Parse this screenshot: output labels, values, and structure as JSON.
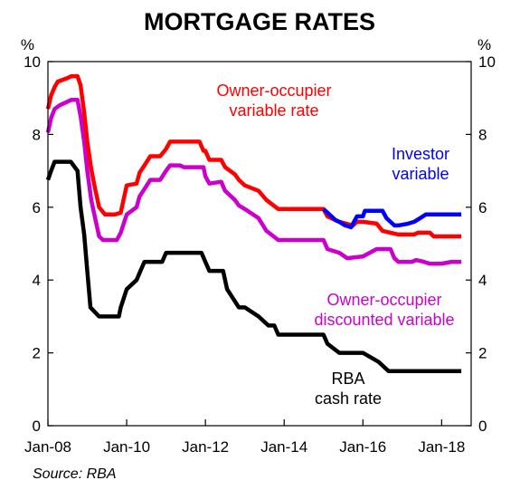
{
  "chart_data": {
    "type": "line",
    "title": "MORTGAGE RATES",
    "y_unit_left": "%",
    "y_unit_right": "%",
    "ylim": [
      0,
      10
    ],
    "yticks": [
      0,
      2,
      4,
      6,
      8,
      10
    ],
    "xlim": [
      2008.0,
      2018.75
    ],
    "xticks": [
      {
        "label": "Jan-08",
        "value": 2008.0
      },
      {
        "label": "Jan-10",
        "value": 2010.0
      },
      {
        "label": "Jan-12",
        "value": 2012.0
      },
      {
        "label": "Jan-14",
        "value": 2014.0
      },
      {
        "label": "Jan-16",
        "value": 2016.0
      },
      {
        "label": "Jan-18",
        "value": 2018.0
      }
    ],
    "grid": false,
    "source": "Source: RBA",
    "series": [
      {
        "name": "Owner-occupier variable rate",
        "label_lines": [
          "Owner-occupier",
          "variable rate"
        ],
        "color": "#ff0000",
        "points": [
          [
            2008.0,
            8.7
          ],
          [
            2008.08,
            9.07
          ],
          [
            2008.17,
            9.3
          ],
          [
            2008.25,
            9.45
          ],
          [
            2008.5,
            9.55
          ],
          [
            2008.6,
            9.6
          ],
          [
            2008.75,
            9.6
          ],
          [
            2008.83,
            9.35
          ],
          [
            2008.92,
            8.6
          ],
          [
            2009.0,
            7.8
          ],
          [
            2009.1,
            7.05
          ],
          [
            2009.2,
            6.5
          ],
          [
            2009.3,
            6.0
          ],
          [
            2009.45,
            5.8
          ],
          [
            2009.7,
            5.8
          ],
          [
            2009.85,
            5.85
          ],
          [
            2010.0,
            6.6
          ],
          [
            2010.25,
            6.65
          ],
          [
            2010.33,
            6.95
          ],
          [
            2010.45,
            7.15
          ],
          [
            2010.6,
            7.4
          ],
          [
            2010.85,
            7.4
          ],
          [
            2011.0,
            7.6
          ],
          [
            2011.1,
            7.8
          ],
          [
            2011.85,
            7.8
          ],
          [
            2011.95,
            7.55
          ],
          [
            2012.0,
            7.55
          ],
          [
            2012.1,
            7.3
          ],
          [
            2012.4,
            7.3
          ],
          [
            2012.5,
            7.1
          ],
          [
            2012.75,
            6.9
          ],
          [
            2012.85,
            6.75
          ],
          [
            2013.0,
            6.6
          ],
          [
            2013.35,
            6.45
          ],
          [
            2013.55,
            6.2
          ],
          [
            2013.85,
            5.95
          ],
          [
            2014.0,
            5.95
          ],
          [
            2015.0,
            5.95
          ],
          [
            2015.1,
            5.75
          ],
          [
            2015.4,
            5.6
          ],
          [
            2015.75,
            5.5
          ],
          [
            2015.85,
            5.6
          ],
          [
            2016.0,
            5.6
          ],
          [
            2016.35,
            5.55
          ],
          [
            2016.5,
            5.35
          ],
          [
            2016.9,
            5.25
          ],
          [
            2017.0,
            5.25
          ],
          [
            2017.3,
            5.25
          ],
          [
            2017.4,
            5.3
          ],
          [
            2017.7,
            5.3
          ],
          [
            2017.8,
            5.2
          ],
          [
            2018.5,
            5.2
          ]
        ]
      },
      {
        "name": "Owner-occupier discounted variable",
        "label_lines": [
          "Owner-occupier",
          "discounted variable"
        ],
        "color": "#cc00cc",
        "points": [
          [
            2008.0,
            8.05
          ],
          [
            2008.08,
            8.45
          ],
          [
            2008.17,
            8.7
          ],
          [
            2008.3,
            8.8
          ],
          [
            2008.5,
            8.9
          ],
          [
            2008.6,
            8.95
          ],
          [
            2008.75,
            8.95
          ],
          [
            2008.83,
            8.5
          ],
          [
            2008.92,
            7.8
          ],
          [
            2009.0,
            7.0
          ],
          [
            2009.1,
            6.2
          ],
          [
            2009.2,
            5.7
          ],
          [
            2009.3,
            5.2
          ],
          [
            2009.4,
            5.1
          ],
          [
            2009.75,
            5.1
          ],
          [
            2009.85,
            5.3
          ],
          [
            2010.0,
            5.8
          ],
          [
            2010.25,
            6.0
          ],
          [
            2010.33,
            6.3
          ],
          [
            2010.45,
            6.5
          ],
          [
            2010.6,
            6.75
          ],
          [
            2010.85,
            6.75
          ],
          [
            2011.0,
            7.0
          ],
          [
            2011.1,
            7.15
          ],
          [
            2011.35,
            7.15
          ],
          [
            2011.45,
            7.1
          ],
          [
            2011.95,
            7.1
          ],
          [
            2012.0,
            6.85
          ],
          [
            2012.1,
            6.65
          ],
          [
            2012.4,
            6.7
          ],
          [
            2012.5,
            6.45
          ],
          [
            2012.75,
            6.2
          ],
          [
            2012.85,
            6.05
          ],
          [
            2013.0,
            5.95
          ],
          [
            2013.35,
            5.7
          ],
          [
            2013.55,
            5.35
          ],
          [
            2013.85,
            5.1
          ],
          [
            2014.0,
            5.1
          ],
          [
            2015.0,
            5.1
          ],
          [
            2015.1,
            4.85
          ],
          [
            2015.4,
            4.75
          ],
          [
            2015.6,
            4.6
          ],
          [
            2016.0,
            4.65
          ],
          [
            2016.35,
            4.85
          ],
          [
            2016.7,
            4.85
          ],
          [
            2016.8,
            4.6
          ],
          [
            2016.9,
            4.5
          ],
          [
            2017.25,
            4.5
          ],
          [
            2017.35,
            4.55
          ],
          [
            2017.55,
            4.5
          ],
          [
            2017.7,
            4.45
          ],
          [
            2018.0,
            4.45
          ],
          [
            2018.25,
            4.5
          ],
          [
            2018.5,
            4.5
          ]
        ]
      },
      {
        "name": "Investor variable",
        "label_lines": [
          "Investor",
          "variable"
        ],
        "color": "#0000ff",
        "points": [
          [
            2015.0,
            5.95
          ],
          [
            2015.15,
            5.8
          ],
          [
            2015.3,
            5.65
          ],
          [
            2015.4,
            5.6
          ],
          [
            2015.55,
            5.5
          ],
          [
            2015.7,
            5.45
          ],
          [
            2015.85,
            5.75
          ],
          [
            2016.0,
            5.75
          ],
          [
            2016.05,
            5.9
          ],
          [
            2016.5,
            5.9
          ],
          [
            2016.6,
            5.7
          ],
          [
            2016.8,
            5.5
          ],
          [
            2016.9,
            5.5
          ],
          [
            2017.15,
            5.55
          ],
          [
            2017.3,
            5.6
          ],
          [
            2017.45,
            5.7
          ],
          [
            2017.6,
            5.8
          ],
          [
            2018.5,
            5.8
          ]
        ]
      },
      {
        "name": "RBA cash rate",
        "label_lines": [
          "RBA",
          "cash rate"
        ],
        "color": "#000000",
        "points": [
          [
            2008.0,
            6.75
          ],
          [
            2008.08,
            7.0
          ],
          [
            2008.17,
            7.25
          ],
          [
            2008.58,
            7.25
          ],
          [
            2008.75,
            7.0
          ],
          [
            2008.83,
            6.0
          ],
          [
            2008.92,
            5.25
          ],
          [
            2009.0,
            4.25
          ],
          [
            2009.08,
            3.25
          ],
          [
            2009.3,
            3.0
          ],
          [
            2009.8,
            3.0
          ],
          [
            2009.85,
            3.25
          ],
          [
            2010.0,
            3.75
          ],
          [
            2010.25,
            4.0
          ],
          [
            2010.35,
            4.25
          ],
          [
            2010.45,
            4.5
          ],
          [
            2010.9,
            4.5
          ],
          [
            2011.0,
            4.75
          ],
          [
            2011.9,
            4.75
          ],
          [
            2012.0,
            4.5
          ],
          [
            2012.1,
            4.25
          ],
          [
            2012.45,
            4.25
          ],
          [
            2012.55,
            3.75
          ],
          [
            2012.7,
            3.5
          ],
          [
            2012.85,
            3.25
          ],
          [
            2013.0,
            3.25
          ],
          [
            2013.35,
            3.0
          ],
          [
            2013.6,
            2.75
          ],
          [
            2013.75,
            2.75
          ],
          [
            2013.85,
            2.5
          ],
          [
            2014.0,
            2.5
          ],
          [
            2015.0,
            2.5
          ],
          [
            2015.1,
            2.25
          ],
          [
            2015.4,
            2.0
          ],
          [
            2016.0,
            2.0
          ],
          [
            2016.4,
            1.75
          ],
          [
            2016.65,
            1.5
          ],
          [
            2017.0,
            1.5
          ],
          [
            2018.5,
            1.5
          ]
        ]
      }
    ]
  }
}
